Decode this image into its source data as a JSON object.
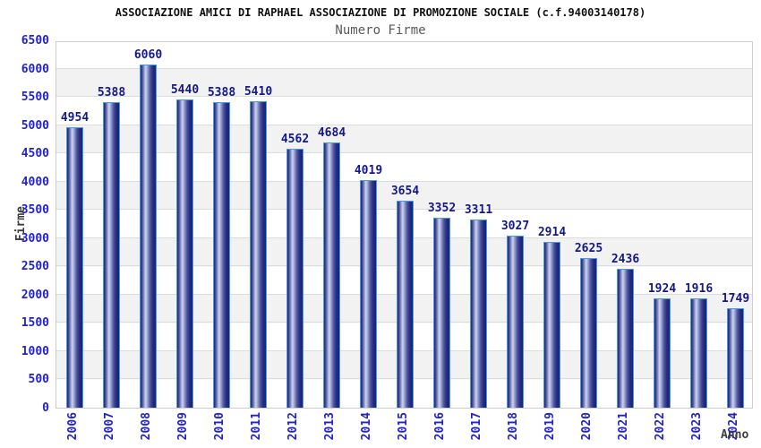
{
  "chart_data": {
    "type": "bar",
    "title": "ASSOCIAZIONE AMICI DI RAPHAEL ASSOCIAZIONE DI PROMOZIONE SOCIALE (c.f.94003140178)",
    "subtitle": "Numero Firme",
    "xlabel": "Anno",
    "ylabel": "Firme",
    "categories": [
      "2006",
      "2007",
      "2008",
      "2009",
      "2010",
      "2011",
      "2012",
      "2013",
      "2014",
      "2015",
      "2016",
      "2017",
      "2018",
      "2019",
      "2020",
      "2021",
      "2022",
      "2023",
      "2024"
    ],
    "values": [
      4954,
      5388,
      6060,
      5440,
      5388,
      5410,
      4562,
      4684,
      4019,
      3654,
      3352,
      3311,
      3027,
      2914,
      2625,
      2436,
      1924,
      1916,
      1749
    ],
    "ylim": [
      0,
      6500
    ],
    "ytick_step": 500,
    "grid": true,
    "legend": null,
    "colors": {
      "title_color": "#111111",
      "subtitle_color": "#595959",
      "tick_label": "#2222cc",
      "value_label": "#14188a",
      "axis_name_color": "#3c3c3c",
      "bar_dark": "#1b2377",
      "bar_light": "#cfd3ee",
      "bar_border": "#4a9ae0",
      "band_gray": "#f2f2f2",
      "grid_line": "#dcdcdc",
      "plot_border": "#cdcdcd"
    }
  }
}
